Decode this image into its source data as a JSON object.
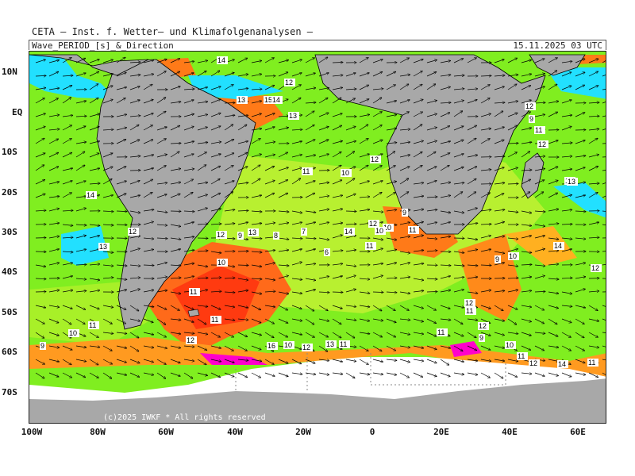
{
  "header": {
    "title": "CETA – Inst. f. Wetter– und Klimafolgenanalysen –",
    "product": "Wave_PERIOD_[s]_&_Direction",
    "timestamp": "15.11.2025 03 UTC"
  },
  "map": {
    "lat_labels": [
      "10N",
      "EQ",
      "10S",
      "20S",
      "30S",
      "40S",
      "50S",
      "60S",
      "70S"
    ],
    "lon_labels": [
      "100W",
      "80W",
      "60W",
      "40W",
      "20W",
      "0",
      "20E",
      "40E",
      "60E"
    ],
    "copyright": "(c)2025 IWKF * All rights reserved",
    "colors": {
      "land": "#a8a8a8",
      "ice": "#ffffff",
      "short_period": "#ff6a1a",
      "mid_period": "#80ee20",
      "long_period": "#22e0ff",
      "very_short": "#ff00cc"
    },
    "period_labels": [
      "14",
      "12",
      "13",
      "15",
      "14",
      "13",
      "11",
      "10",
      "12",
      "14",
      "13",
      "12",
      "11",
      "10",
      "9",
      "8",
      "7",
      "6",
      "12",
      "11",
      "10",
      "9",
      "11",
      "12",
      "15",
      "14",
      "13",
      "12",
      "11",
      "10",
      "9",
      "12",
      "11",
      "16",
      "10",
      "12",
      "13",
      "11",
      "10",
      "11",
      "12",
      "9",
      "10",
      "11",
      "12",
      "9",
      "10",
      "11",
      "12",
      "14",
      "11",
      "12",
      "14",
      "9",
      "11",
      "12",
      "13"
    ]
  }
}
